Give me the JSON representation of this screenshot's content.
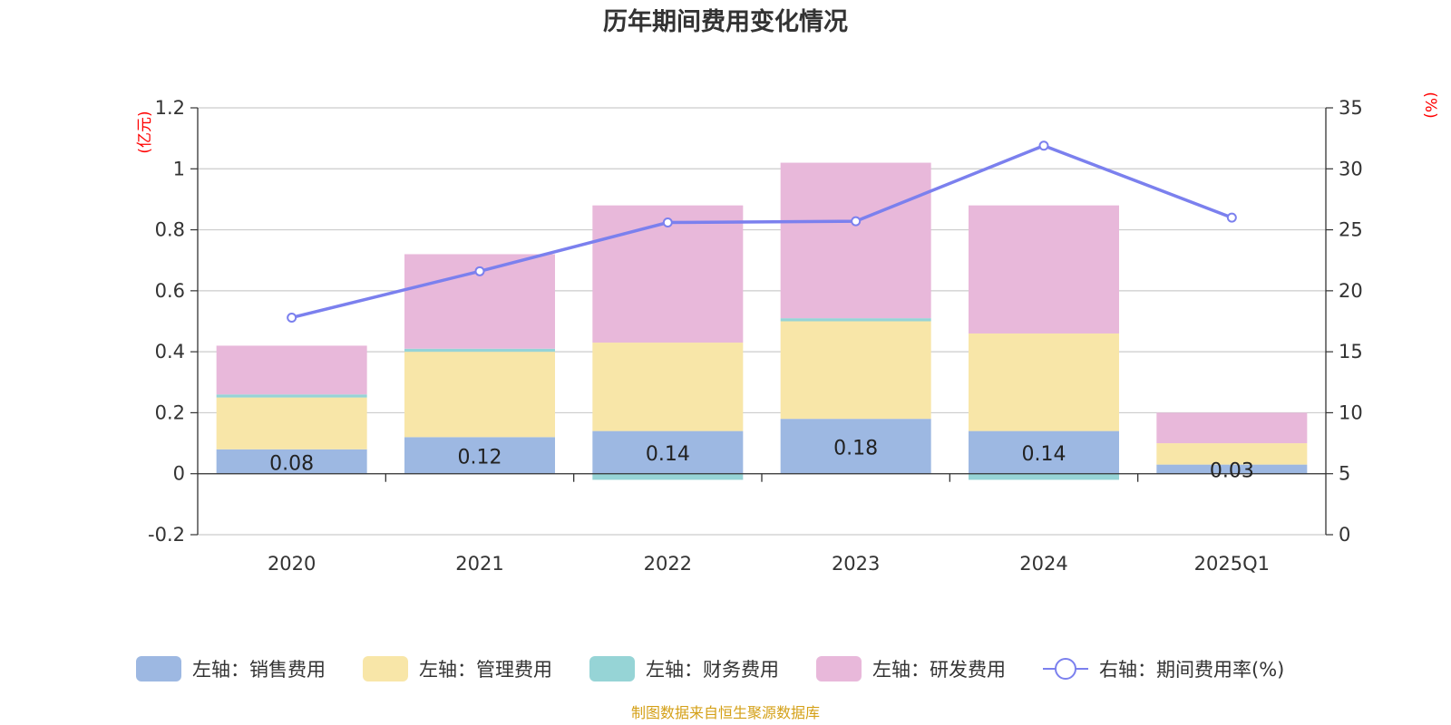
{
  "chart_data": {
    "type": "bar",
    "stacked": true,
    "title": "历年期间费用变化情况",
    "categories": [
      "2020",
      "2021",
      "2022",
      "2023",
      "2024",
      "2025Q1"
    ],
    "left_axis": {
      "unit": "(亿元)",
      "min": -0.2,
      "max": 1.2,
      "ticks": [
        "-0.2",
        "0",
        "0.2",
        "0.4",
        "0.6",
        "0.8",
        "1",
        "1.2"
      ]
    },
    "right_axis": {
      "unit": "(%)",
      "min": 0,
      "max": 35,
      "ticks": [
        "0",
        "5",
        "10",
        "15",
        "20",
        "25",
        "30",
        "35"
      ]
    },
    "series": [
      {
        "name": "左轴：销售费用",
        "axis": "left",
        "color": "#9db8e2",
        "values": [
          0.08,
          0.12,
          0.14,
          0.18,
          0.14,
          0.03
        ],
        "labels": [
          "0.08",
          "0.12",
          "0.14",
          "0.18",
          "0.14",
          "0.03"
        ]
      },
      {
        "name": "左轴：管理费用",
        "axis": "left",
        "color": "#f8e6a8",
        "values": [
          0.17,
          0.28,
          0.29,
          0.32,
          0.32,
          0.07
        ]
      },
      {
        "name": "左轴：财务费用",
        "axis": "left",
        "color": "#96d4d6",
        "values": [
          0.01,
          0.01,
          -0.02,
          0.01,
          -0.02,
          0.0
        ]
      },
      {
        "name": "左轴：研发费用",
        "axis": "left",
        "color": "#e8b8da",
        "values": [
          0.16,
          0.31,
          0.45,
          0.51,
          0.42,
          0.1
        ]
      },
      {
        "name": "右轴：期间费用率(%)",
        "axis": "right",
        "type": "line",
        "color": "#7b80ee",
        "values": [
          17.8,
          21.6,
          25.6,
          25.7,
          31.9,
          26.0
        ]
      }
    ],
    "grid": true,
    "legend_position": "bottom"
  },
  "footer": "制图数据来自恒生聚源数据库"
}
